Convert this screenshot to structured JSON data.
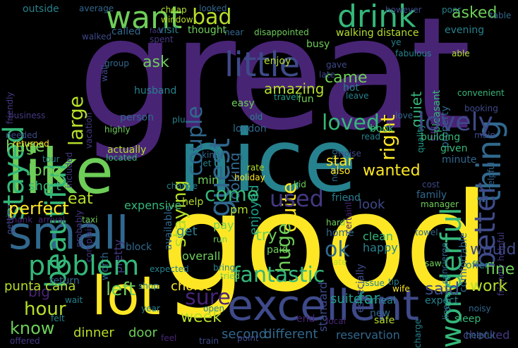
{
  "background": "#000000",
  "palette": {
    "purple": "#482475",
    "violet": "#443983",
    "indigo": "#3e4a89",
    "blue": "#31688e",
    "steel": "#26828e",
    "teal": "#1f9e89",
    "green": "#35b779",
    "lime": "#6ece58",
    "yellowgreen": "#b5de2b",
    "yellow": "#fde725"
  },
  "words": [
    {
      "text": "great",
      "color": "#482475"
    },
    {
      "text": "good",
      "color": "#fde725"
    },
    {
      "text": "nice",
      "color": "#26828e"
    },
    {
      "text": "like",
      "color": "#6ece58"
    },
    {
      "text": "excellent",
      "color": "#3e4a89"
    },
    {
      "text": "small",
      "color": "#31688e"
    },
    {
      "text": "lot",
      "color": "#fde725"
    },
    {
      "text": "little",
      "color": "#3e4a89"
    },
    {
      "text": "drink",
      "color": "#35b779"
    },
    {
      "text": "want",
      "color": "#6ece58"
    },
    {
      "text": "bad",
      "color": "#b5de2b"
    },
    {
      "text": "stayed",
      "color": "#35b779"
    },
    {
      "text": "beautiful",
      "color": "#35b779"
    },
    {
      "text": "thing",
      "color": "#31688e"
    },
    {
      "text": "lovely",
      "color": "#3e4a89"
    },
    {
      "text": "better",
      "color": "#3e4a89"
    },
    {
      "text": "wonderful",
      "color": "#35b779"
    },
    {
      "text": "problem",
      "color": "#35b779"
    },
    {
      "text": "perfect",
      "color": "#fde725"
    },
    {
      "text": "large",
      "color": "#b5de2b"
    },
    {
      "text": "couple",
      "color": "#31688e"
    },
    {
      "text": "guest",
      "color": "#31688e"
    },
    {
      "text": "right",
      "color": "#fde725"
    },
    {
      "text": "quite",
      "color": "#fde725"
    },
    {
      "text": "loved",
      "color": "#35b779"
    },
    {
      "text": "fantastic",
      "color": "#35b779"
    },
    {
      "text": "used",
      "color": "#443983"
    },
    {
      "text": "come",
      "color": "#35b779"
    },
    {
      "text": "sure",
      "color": "#482475"
    },
    {
      "text": "left",
      "color": "#6ece58"
    },
    {
      "text": "hour",
      "color": "#b5de2b"
    },
    {
      "text": "know",
      "color": "#6ece58"
    },
    {
      "text": "ok",
      "color": "#31688e"
    },
    {
      "text": "said",
      "color": "#3e4a89"
    },
    {
      "text": "fine",
      "color": "#6ece58"
    },
    {
      "text": "work",
      "color": "#b5de2b"
    },
    {
      "text": "would",
      "color": "#3e4a89"
    },
    {
      "text": "staying",
      "color": "#b5de2b"
    },
    {
      "text": "looking",
      "color": "#31688e"
    },
    {
      "text": "amazing",
      "color": "#b5de2b"
    },
    {
      "text": "came",
      "color": "#6ece58"
    },
    {
      "text": "asked",
      "color": "#6ece58"
    },
    {
      "text": "quiet",
      "color": "#35b779"
    },
    {
      "text": "eat",
      "color": "#b5de2b"
    },
    {
      "text": "ask",
      "color": "#6ece58"
    },
    {
      "text": "huge",
      "color": "#6ece58"
    },
    {
      "text": "long",
      "color": "#6ece58"
    },
    {
      "text": "short",
      "color": "#35b779"
    },
    {
      "text": "wanted",
      "color": "#fde725"
    },
    {
      "text": "star",
      "color": "#fde725"
    },
    {
      "text": "enjoyed",
      "color": "#1f9e89"
    },
    {
      "text": "look",
      "color": "#3e4a89"
    },
    {
      "text": "try",
      "color": "#6ece58"
    },
    {
      "text": "far",
      "color": "#1f9e89"
    },
    {
      "text": "week",
      "color": "#b5de2b"
    },
    {
      "text": "dinner",
      "color": "#b5de2b"
    },
    {
      "text": "door",
      "color": "#6ece58"
    },
    {
      "text": "big",
      "color": "#482475"
    },
    {
      "text": "choice",
      "color": "#fde725"
    },
    {
      "text": "expensive",
      "color": "#35b779"
    },
    {
      "text": "standard",
      "color": "#3e4a89"
    },
    {
      "text": "suite",
      "color": "#1f9e89"
    },
    {
      "text": "second",
      "color": "#31688e"
    },
    {
      "text": "different",
      "color": "#31688e"
    },
    {
      "text": "reservation",
      "color": "#31688e"
    },
    {
      "text": "checked",
      "color": "#443983"
    },
    {
      "text": "overall",
      "color": "#6ece58"
    },
    {
      "text": "get",
      "color": "#26828e"
    },
    {
      "text": "pay",
      "color": "#6ece58"
    },
    {
      "text": "u",
      "color": "#26828e"
    },
    {
      "text": "min",
      "color": "#6ece58"
    },
    {
      "text": "pm",
      "color": "#b5de2b"
    },
    {
      "text": "help",
      "color": "#b5de2b"
    },
    {
      "text": "clean",
      "color": "#35b779"
    },
    {
      "text": "happy",
      "color": "#26828e"
    },
    {
      "text": "home",
      "color": "#31688e"
    },
    {
      "text": "also",
      "color": "#fde725"
    },
    {
      "text": "friend",
      "color": "#26828e"
    },
    {
      "text": "kid",
      "color": "#6ece58"
    },
    {
      "text": "family",
      "color": "#31688e"
    },
    {
      "text": "comfortable",
      "color": "#31688e"
    },
    {
      "text": "friendly helpful",
      "color": "#443983"
    },
    {
      "text": "minute",
      "color": "#31688e"
    },
    {
      "text": "given",
      "color": "#35b779"
    },
    {
      "text": "building",
      "color": "#35b779"
    },
    {
      "text": "booking",
      "color": "#3e4a89"
    },
    {
      "text": "london",
      "color": "#31688e"
    },
    {
      "text": "enjoy",
      "color": "#b5de2b"
    },
    {
      "text": "busy",
      "color": "#6ece58"
    },
    {
      "text": "hot",
      "color": "#26828e"
    },
    {
      "text": "fun",
      "color": "#6ece58"
    },
    {
      "text": "book",
      "color": "#35b779"
    },
    {
      "text": "easy",
      "color": "#6ece58"
    },
    {
      "text": "husband",
      "color": "#26828e"
    },
    {
      "text": "person",
      "color": "#31688e"
    },
    {
      "text": "pretty",
      "color": "#443983"
    },
    {
      "text": "block",
      "color": "#31688e"
    },
    {
      "text": "actually",
      "color": "#b5de2b"
    },
    {
      "text": "located",
      "color": "#35b779"
    },
    {
      "text": "probably",
      "color": "#443983"
    },
    {
      "text": "complaint",
      "color": "#443983"
    },
    {
      "text": "included",
      "color": "#443983"
    },
    {
      "text": "needed",
      "color": "#3e4a89"
    },
    {
      "text": "returned",
      "color": "#fde725"
    },
    {
      "text": "getting",
      "color": "#3e4a89"
    },
    {
      "text": "tour",
      "color": "#26828e"
    },
    {
      "text": "thank",
      "color": "#482475"
    },
    {
      "text": "arrival",
      "color": "#482475"
    },
    {
      "text": "taxi",
      "color": "#6ece58"
    },
    {
      "text": "punta cana",
      "color": "#b5de2b"
    },
    {
      "text": "return",
      "color": "#31688e"
    },
    {
      "text": "wait",
      "color": "#26828e"
    },
    {
      "text": "felt",
      "color": "#26828e"
    },
    {
      "text": "offered",
      "color": "#443983"
    },
    {
      "text": "feel",
      "color": "#482475"
    },
    {
      "text": "train",
      "color": "#3e4a89"
    },
    {
      "text": "point",
      "color": "#3e4a89"
    },
    {
      "text": "safe",
      "color": "#b5de2b"
    },
    {
      "text": "local",
      "color": "#482475"
    },
    {
      "text": "end",
      "color": "#482475"
    },
    {
      "text": "new",
      "color": "#31688e"
    },
    {
      "text": "meal",
      "color": "#26828e"
    },
    {
      "text": "wife",
      "color": "#fde725"
    },
    {
      "text": "issue",
      "color": "#26828e"
    },
    {
      "text": "tip",
      "color": "#26828e"
    },
    {
      "text": "ate",
      "color": "#b5de2b"
    },
    {
      "text": "paid",
      "color": "#6ece58"
    },
    {
      "text": "hard",
      "color": "#6ece58"
    },
    {
      "text": "charge",
      "color": "#26828e"
    },
    {
      "text": "sleep",
      "color": "#35b779"
    },
    {
      "text": "helpful",
      "color": "#31688e"
    },
    {
      "text": "noisy",
      "color": "#31688e"
    },
    {
      "text": "expect",
      "color": "#26828e"
    },
    {
      "text": "line",
      "color": "#31688e"
    },
    {
      "text": "offer",
      "color": "#26828e"
    },
    {
      "text": "saw",
      "color": "#6ece58"
    },
    {
      "text": "provided",
      "color": "#1f9e89"
    },
    {
      "text": "towel",
      "color": "#31688e"
    },
    {
      "text": "concierge",
      "color": "#31688e"
    },
    {
      "text": "manager",
      "color": "#6ece58"
    },
    {
      "text": "cost",
      "color": "#3e4a89"
    },
    {
      "text": "certainly",
      "color": "#482475"
    },
    {
      "text": "especially",
      "color": "#3e4a89"
    },
    {
      "text": "worth",
      "color": "#31688e"
    },
    {
      "text": "expected",
      "color": "#26828e"
    },
    {
      "text": "year",
      "color": "#26828e"
    },
    {
      "text": "open",
      "color": "#26828e"
    },
    {
      "text": "shop",
      "color": "#26828e"
    },
    {
      "text": "bring",
      "color": "#26828e"
    },
    {
      "text": "tried",
      "color": "#6ece58"
    },
    {
      "text": "run",
      "color": "#6ece58"
    },
    {
      "text": "change",
      "color": "#26828e"
    },
    {
      "text": "let",
      "color": "#26828e"
    },
    {
      "text": "kind",
      "color": "#31688e"
    },
    {
      "text": "rate",
      "color": "#b5de2b"
    },
    {
      "text": "holiday",
      "color": "#fde725"
    },
    {
      "text": "available",
      "color": "#31688e"
    },
    {
      "text": "noise",
      "color": "#3e4a89"
    },
    {
      "text": "nothing",
      "color": "#31688e"
    },
    {
      "text": "read",
      "color": "#26828e"
    },
    {
      "text": "old",
      "color": "#26828e"
    },
    {
      "text": "plu",
      "color": "#26828e"
    },
    {
      "text": "highly",
      "color": "#6ece58"
    },
    {
      "text": "love",
      "color": "#31688e"
    },
    {
      "text": "quality",
      "color": "#1f9e89"
    },
    {
      "text": "main",
      "color": "#3e4a89"
    },
    {
      "text": "leave",
      "color": "#26828e"
    },
    {
      "text": "travel",
      "color": "#1f9e89"
    },
    {
      "text": "late",
      "color": "#3e4a89"
    },
    {
      "text": "gave",
      "color": "#3e4a89"
    },
    {
      "text": "pleasant",
      "color": "#35b779"
    },
    {
      "text": "property",
      "color": "#31688e"
    },
    {
      "text": "convenient",
      "color": "#35b779"
    },
    {
      "text": "fabulous",
      "color": "#26828e"
    },
    {
      "text": "ye",
      "color": "#26828e"
    },
    {
      "text": "able",
      "color": "#b5de2b"
    },
    {
      "text": "evening",
      "color": "#26828e"
    },
    {
      "text": "walking distance",
      "color": "#b5de2b"
    },
    {
      "text": "disappointed",
      "color": "#6ece58"
    },
    {
      "text": "near",
      "color": "#31688e"
    },
    {
      "text": "thought",
      "color": "#6ece58"
    },
    {
      "text": "visit",
      "color": "#26828e"
    },
    {
      "text": "called",
      "color": "#31688e"
    },
    {
      "text": "spent",
      "color": "#443983"
    },
    {
      "text": "fact",
      "color": "#443983"
    },
    {
      "text": "window",
      "color": "#b5de2b"
    },
    {
      "text": "cheap",
      "color": "#b5de2b"
    },
    {
      "text": "looked",
      "color": "#31688e"
    },
    {
      "text": "however",
      "color": "#3e4a89"
    },
    {
      "text": "poor",
      "color": "#26828e"
    },
    {
      "text": "table",
      "color": "#31688e"
    },
    {
      "text": "outside",
      "color": "#26828e"
    },
    {
      "text": "average",
      "color": "#31688e"
    },
    {
      "text": "walked",
      "color": "#3e4a89"
    },
    {
      "text": "wall",
      "color": "#3e4a89"
    },
    {
      "text": "group",
      "color": "#31688e"
    },
    {
      "text": "friendly",
      "color": "#443983"
    },
    {
      "text": "vacation",
      "color": "#443983"
    },
    {
      "text": "business",
      "color": "#443983"
    },
    {
      "text": "included",
      "color": "#3e4a89"
    }
  ]
}
